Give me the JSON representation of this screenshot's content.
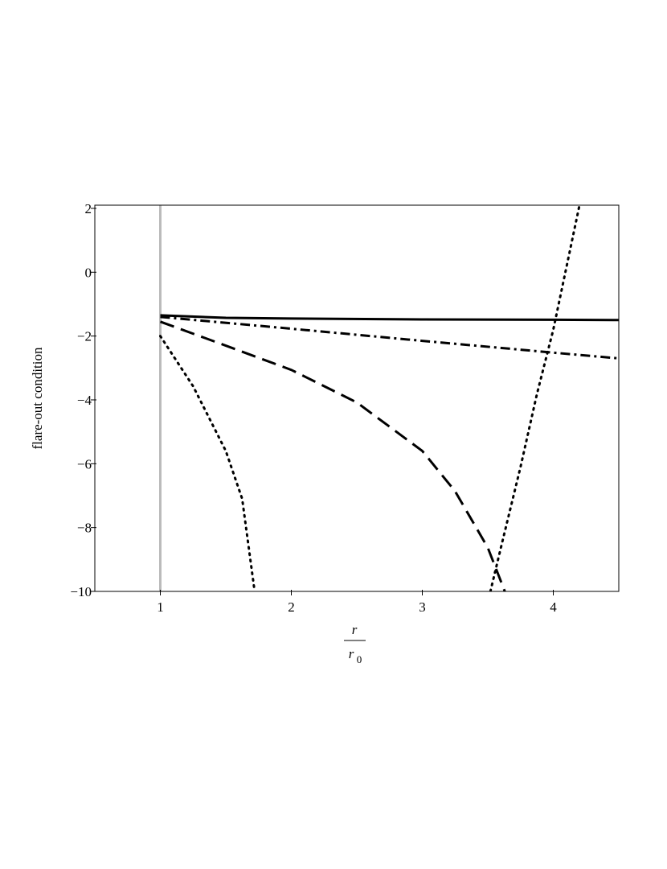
{
  "chart_data": {
    "type": "line",
    "y_label": "flare-out condition",
    "x_label": {
      "numerator": "r",
      "denominator": "r",
      "subscript": "0"
    },
    "xlim": [
      0.5,
      4.5
    ],
    "ylim": [
      -10,
      2.1
    ],
    "xticks": [
      1,
      2,
      3,
      4
    ],
    "yticks": [
      {
        "value": -10,
        "label": "−10"
      },
      {
        "value": -8,
        "label": "−8"
      },
      {
        "value": -6,
        "label": "−6"
      },
      {
        "value": -4,
        "label": "−4"
      },
      {
        "value": -2,
        "label": "−2"
      },
      0,
      2
    ],
    "vertical_line": {
      "x": 1,
      "color": "#bbbbbb"
    },
    "series": [
      {
        "color": "#000000",
        "dash": "solid",
        "x": [
          1,
          1.5,
          2,
          3,
          4,
          4.5
        ],
        "values": [
          -1.35,
          -1.43,
          -1.45,
          -1.48,
          -1.49,
          -1.5
        ]
      },
      {
        "color": "#000000",
        "dash": "dashdot",
        "x": [
          1,
          2,
          3,
          4,
          4.5
        ],
        "values": [
          -1.4,
          -1.77,
          -2.15,
          -2.52,
          -2.7
        ]
      },
      {
        "color": "#000000",
        "dash": "dashed",
        "x": [
          1,
          1.5,
          2,
          2.5,
          3,
          3.25,
          3.5,
          3.63
        ],
        "values": [
          -1.55,
          -2.3,
          -3.06,
          -4.08,
          -5.6,
          -6.86,
          -8.63,
          -10
        ]
      },
      {
        "color": "#000000",
        "dash": "dotted",
        "x": [
          1,
          1.25,
          1.5,
          1.625,
          1.72
        ],
        "values": [
          -2.0,
          -3.57,
          -5.6,
          -7.1,
          -10
        ]
      },
      {
        "color": "#000000",
        "dash": "dotted",
        "x": [
          3.52,
          3.6,
          3.75,
          3.875,
          4,
          4.2
        ],
        "values": [
          -10,
          -8.63,
          -6.1,
          -3.82,
          -1.8,
          2.1
        ]
      }
    ]
  }
}
